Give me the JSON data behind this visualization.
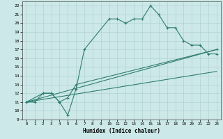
{
  "title": "",
  "xlabel": "Humidex (Indice chaleur)",
  "bg_color": "#cce8e8",
  "grid_color": "#aacece",
  "line_color": "#2e7d6e",
  "xlim": [
    -0.5,
    23.5
  ],
  "ylim": [
    9,
    22.5
  ],
  "xticks": [
    0,
    1,
    2,
    3,
    4,
    5,
    6,
    7,
    8,
    9,
    10,
    11,
    12,
    13,
    14,
    15,
    16,
    17,
    18,
    19,
    20,
    21,
    22,
    23
  ],
  "yticks": [
    9,
    10,
    11,
    12,
    13,
    14,
    15,
    16,
    17,
    18,
    19,
    20,
    21,
    22
  ],
  "series": [
    {
      "x": [
        0,
        1,
        2,
        3,
        4,
        5,
        6,
        7,
        10,
        11,
        12,
        13,
        14,
        15,
        16,
        17,
        18,
        19,
        20,
        21,
        22,
        23
      ],
      "y": [
        11,
        11,
        12,
        12,
        11,
        9.5,
        12.5,
        17,
        20.5,
        20.5,
        20,
        20.5,
        20.5,
        22,
        21,
        19.5,
        19.5,
        18,
        17.5,
        17.5,
        16.5,
        16.5
      ],
      "marker": true,
      "linewidth": 0.8
    },
    {
      "x": [
        0,
        2,
        3,
        4,
        5,
        6,
        23
      ],
      "y": [
        11,
        12,
        12,
        11,
        11.5,
        13,
        17
      ],
      "marker": true,
      "linewidth": 0.8
    },
    {
      "x": [
        0,
        23
      ],
      "y": [
        11,
        17
      ],
      "marker": false,
      "linewidth": 0.8
    },
    {
      "x": [
        0,
        23
      ],
      "y": [
        11,
        14.5
      ],
      "marker": false,
      "linewidth": 0.8
    }
  ]
}
